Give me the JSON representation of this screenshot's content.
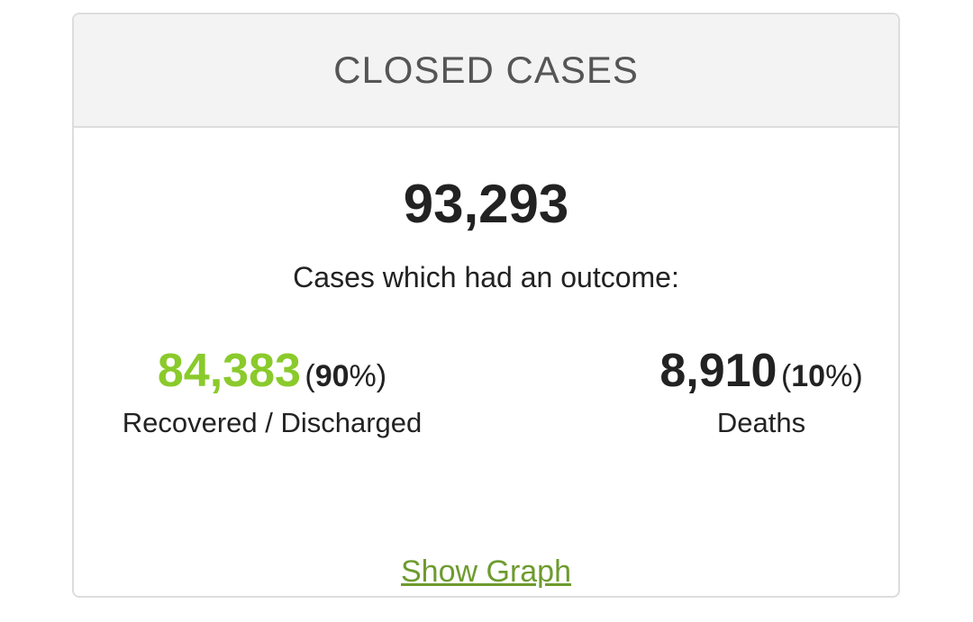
{
  "header": {
    "title": "CLOSED CASES"
  },
  "total": "93,293",
  "subtitle": "Cases which had an outcome:",
  "stats": [
    {
      "value": "84,383",
      "percent": "(90%)",
      "label": "Recovered / Discharged"
    },
    {
      "value": "8,910",
      "percent": "(10%)",
      "label": "Deaths"
    }
  ],
  "link": "Show Graph"
}
